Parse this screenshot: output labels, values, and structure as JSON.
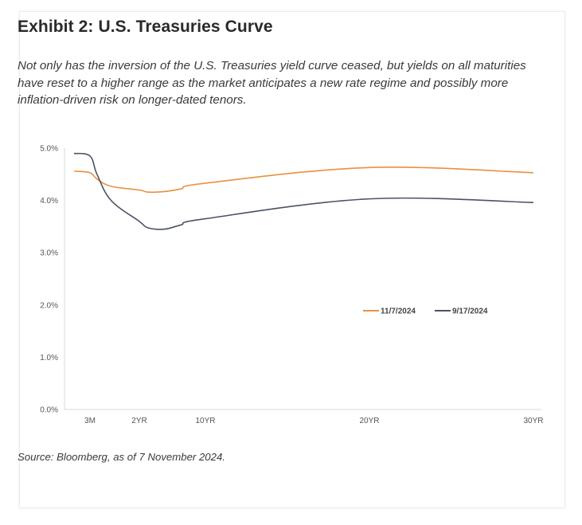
{
  "header": {
    "title": "Exhibit 2: U.S. Treasuries Curve",
    "subtitle": "Not only has the inversion of the U.S. Treasuries yield curve ceased, but yields on all maturities have reset to a higher range as the market anticipates a new rate regime and possibly more inflation-driven risk on longer-dated tenors."
  },
  "footer": {
    "source": "Source: Bloomberg, as of 7 November 2024."
  },
  "chart_data": {
    "type": "line",
    "title": "",
    "xlabel": "",
    "ylabel": "",
    "x_unit": "years",
    "x_ticks": [
      {
        "label": "3M",
        "value": 0.25
      },
      {
        "label": "2YR",
        "value": 2
      },
      {
        "label": "10YR",
        "value": 10
      },
      {
        "label": "20YR",
        "value": 20
      },
      {
        "label": "30YR",
        "value": 30
      }
    ],
    "x_points": [
      0.083,
      0.25,
      0.5,
      1,
      2,
      3,
      5,
      7,
      10,
      20,
      30
    ],
    "ylim": [
      0,
      5
    ],
    "y_ticks": [
      "0.0%",
      "1.0%",
      "2.0%",
      "3.0%",
      "4.0%",
      "5.0%"
    ],
    "grid": false,
    "legend_position": "right-center",
    "series": [
      {
        "name": "11/7/2024",
        "color": "#e8913f",
        "values": [
          4.56,
          4.53,
          4.41,
          4.27,
          4.2,
          4.16,
          4.17,
          4.22,
          4.33,
          4.63,
          4.53
        ]
      },
      {
        "name": "9/17/2024",
        "color": "#4a5364",
        "values": [
          4.9,
          4.85,
          4.5,
          4.0,
          3.6,
          3.48,
          3.45,
          3.53,
          3.65,
          4.03,
          3.96
        ]
      }
    ]
  }
}
